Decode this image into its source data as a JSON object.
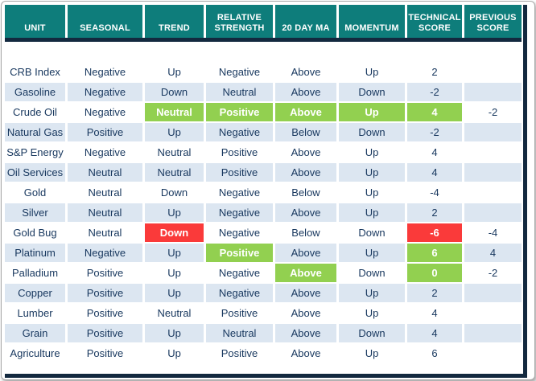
{
  "colors": {
    "header_teal": "#0E7D7B",
    "border_navy": "#13293F",
    "band_blue": "#DCE6F1",
    "highlight_green": "#92D050",
    "highlight_red": "#FA3A3A",
    "body_text_navy": "#17375E",
    "header_text": "#FFFFFF"
  },
  "chart_data": {
    "type": "table",
    "title": "",
    "columns": [
      {
        "key": "unit",
        "label": "UNIT"
      },
      {
        "key": "seasonal",
        "label": "SEASONAL"
      },
      {
        "key": "trend",
        "label": "TREND"
      },
      {
        "key": "relative_strength",
        "label": "RELATIVE STRENGTH"
      },
      {
        "key": "ma20",
        "label": "20 DAY MA"
      },
      {
        "key": "momentum",
        "label": "MOMENTUM"
      },
      {
        "key": "technical_score",
        "label": "TECHNICAL SCORE"
      },
      {
        "key": "previous_score",
        "label": "PREVIOUS SCORE"
      }
    ],
    "rows": [
      {
        "unit": "CRB Index",
        "seasonal": "Negative",
        "trend": "Up",
        "relative_strength": "Negative",
        "ma20": "Above",
        "momentum": "Up",
        "technical_score": "2",
        "previous_score": "",
        "highlights": {}
      },
      {
        "unit": "Gasoline",
        "seasonal": "Negative",
        "trend": "Down",
        "relative_strength": "Neutral",
        "ma20": "Above",
        "momentum": "Down",
        "technical_score": "-2",
        "previous_score": "",
        "highlights": {}
      },
      {
        "unit": "Crude Oil",
        "seasonal": "Negative",
        "trend": "Neutral",
        "relative_strength": "Positive",
        "ma20": "Above",
        "momentum": "Up",
        "technical_score": "4",
        "previous_score": "-2",
        "highlights": {
          "trend": "green",
          "relative_strength": "green",
          "ma20": "green",
          "momentum": "green",
          "technical_score": "green"
        }
      },
      {
        "unit": "Natural Gas",
        "seasonal": "Positive",
        "trend": "Up",
        "relative_strength": "Negative",
        "ma20": "Below",
        "momentum": "Down",
        "technical_score": "-2",
        "previous_score": "",
        "highlights": {}
      },
      {
        "unit": "S&P Energy",
        "seasonal": "Negative",
        "trend": "Neutral",
        "relative_strength": "Positive",
        "ma20": "Above",
        "momentum": "Up",
        "technical_score": "4",
        "previous_score": "",
        "highlights": {}
      },
      {
        "unit": "Oil Services",
        "seasonal": "Neutral",
        "trend": "Neutral",
        "relative_strength": "Positive",
        "ma20": "Above",
        "momentum": "Up",
        "technical_score": "4",
        "previous_score": "",
        "highlights": {}
      },
      {
        "unit": "Gold",
        "seasonal": "Neutral",
        "trend": "Down",
        "relative_strength": "Negative",
        "ma20": "Below",
        "momentum": "Up",
        "technical_score": "-4",
        "previous_score": "",
        "highlights": {}
      },
      {
        "unit": "Silver",
        "seasonal": "Neutral",
        "trend": "Up",
        "relative_strength": "Negative",
        "ma20": "Above",
        "momentum": "Up",
        "technical_score": "2",
        "previous_score": "",
        "highlights": {}
      },
      {
        "unit": "Gold Bug",
        "seasonal": "Neutral",
        "trend": "Down",
        "relative_strength": "Negative",
        "ma20": "Below",
        "momentum": "Down",
        "technical_score": "-6",
        "previous_score": "-4",
        "highlights": {
          "trend": "red",
          "technical_score": "red"
        }
      },
      {
        "unit": "Platinum",
        "seasonal": "Negative",
        "trend": "Up",
        "relative_strength": "Positive",
        "ma20": "Above",
        "momentum": "Up",
        "technical_score": "6",
        "previous_score": "4",
        "highlights": {
          "relative_strength": "green",
          "technical_score": "green"
        }
      },
      {
        "unit": "Palladium",
        "seasonal": "Positive",
        "trend": "Up",
        "relative_strength": "Negative",
        "ma20": "Above",
        "momentum": "Down",
        "technical_score": "0",
        "previous_score": "-2",
        "highlights": {
          "ma20": "green",
          "technical_score": "green"
        }
      },
      {
        "unit": "Copper",
        "seasonal": "Positive",
        "trend": "Up",
        "relative_strength": "Negative",
        "ma20": "Above",
        "momentum": "Up",
        "technical_score": "2",
        "previous_score": "",
        "highlights": {}
      },
      {
        "unit": "Lumber",
        "seasonal": "Positive",
        "trend": "Neutral",
        "relative_strength": "Positive",
        "ma20": "Above",
        "momentum": "Up",
        "technical_score": "4",
        "previous_score": "",
        "highlights": {}
      },
      {
        "unit": "Grain",
        "seasonal": "Positive",
        "trend": "Up",
        "relative_strength": "Neutral",
        "ma20": "Above",
        "momentum": "Down",
        "technical_score": "4",
        "previous_score": "",
        "highlights": {}
      },
      {
        "unit": "Agriculture",
        "seasonal": "Positive",
        "trend": "Up",
        "relative_strength": "Positive",
        "ma20": "Above",
        "momentum": "Up",
        "technical_score": "6",
        "previous_score": "",
        "highlights": {}
      }
    ]
  }
}
